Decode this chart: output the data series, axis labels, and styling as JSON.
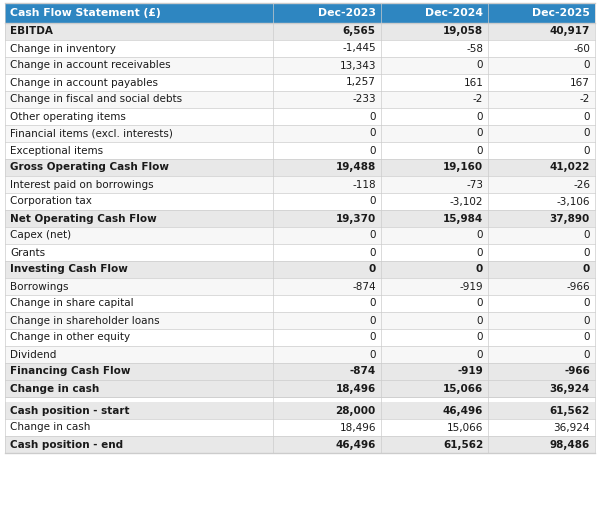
{
  "header_bg": "#2E86C1",
  "header_text_color": "#FFFFFF",
  "bold_row_bg": "#E8E8E8",
  "normal_row_bg": "#FFFFFF",
  "alt_row_bg": "#F7F7F7",
  "border_color": "#CCCCCC",
  "text_color": "#1A1A1A",
  "col_header": "Cash Flow Statement (£)",
  "col1": "Dec-2023",
  "col2": "Dec-2024",
  "col3": "Dec-2025",
  "rows": [
    {
      "label": "EBITDA",
      "v1": "6,565",
      "v2": "19,058",
      "v3": "40,917",
      "bold": true,
      "gap_before": false
    },
    {
      "label": "Change in inventory",
      "v1": "-1,445",
      "v2": "-58",
      "v3": "-60",
      "bold": false,
      "gap_before": false
    },
    {
      "label": "Change in account receivables",
      "v1": "13,343",
      "v2": "0",
      "v3": "0",
      "bold": false,
      "gap_before": false
    },
    {
      "label": "Change in account payables",
      "v1": "1,257",
      "v2": "161",
      "v3": "167",
      "bold": false,
      "gap_before": false
    },
    {
      "label": "Change in fiscal and social debts",
      "v1": "-233",
      "v2": "-2",
      "v3": "-2",
      "bold": false,
      "gap_before": false
    },
    {
      "label": "Other operating items",
      "v1": "0",
      "v2": "0",
      "v3": "0",
      "bold": false,
      "gap_before": false
    },
    {
      "label": "Financial items (excl. interests)",
      "v1": "0",
      "v2": "0",
      "v3": "0",
      "bold": false,
      "gap_before": false
    },
    {
      "label": "Exceptional items",
      "v1": "0",
      "v2": "0",
      "v3": "0",
      "bold": false,
      "gap_before": false
    },
    {
      "label": "Gross Operating Cash Flow",
      "v1": "19,488",
      "v2": "19,160",
      "v3": "41,022",
      "bold": true,
      "gap_before": false
    },
    {
      "label": "Interest paid on borrowings",
      "v1": "-118",
      "v2": "-73",
      "v3": "-26",
      "bold": false,
      "gap_before": false
    },
    {
      "label": "Corporation tax",
      "v1": "0",
      "v2": "-3,102",
      "v3": "-3,106",
      "bold": false,
      "gap_before": false
    },
    {
      "label": "Net Operating Cash Flow",
      "v1": "19,370",
      "v2": "15,984",
      "v3": "37,890",
      "bold": true,
      "gap_before": false
    },
    {
      "label": "Capex (net)",
      "v1": "0",
      "v2": "0",
      "v3": "0",
      "bold": false,
      "gap_before": false
    },
    {
      "label": "Grants",
      "v1": "0",
      "v2": "0",
      "v3": "0",
      "bold": false,
      "gap_before": false
    },
    {
      "label": "Investing Cash Flow",
      "v1": "0",
      "v2": "0",
      "v3": "0",
      "bold": true,
      "gap_before": false
    },
    {
      "label": "Borrowings",
      "v1": "-874",
      "v2": "-919",
      "v3": "-966",
      "bold": false,
      "gap_before": false
    },
    {
      "label": "Change in share capital",
      "v1": "0",
      "v2": "0",
      "v3": "0",
      "bold": false,
      "gap_before": false
    },
    {
      "label": "Change in shareholder loans",
      "v1": "0",
      "v2": "0",
      "v3": "0",
      "bold": false,
      "gap_before": false
    },
    {
      "label": "Change in other equity",
      "v1": "0",
      "v2": "0",
      "v3": "0",
      "bold": false,
      "gap_before": false
    },
    {
      "label": "Dividend",
      "v1": "0",
      "v2": "0",
      "v3": "0",
      "bold": false,
      "gap_before": false
    },
    {
      "label": "Financing Cash Flow",
      "v1": "-874",
      "v2": "-919",
      "v3": "-966",
      "bold": true,
      "gap_before": false
    },
    {
      "label": "Change in cash",
      "v1": "18,496",
      "v2": "15,066",
      "v3": "36,924",
      "bold": true,
      "gap_before": false
    },
    {
      "label": "Cash position - start",
      "v1": "28,000",
      "v2": "46,496",
      "v3": "61,562",
      "bold": true,
      "gap_before": true
    },
    {
      "label": "Change in cash",
      "v1": "18,496",
      "v2": "15,066",
      "v3": "36,924",
      "bold": false,
      "gap_before": false
    },
    {
      "label": "Cash position - end",
      "v1": "46,496",
      "v2": "61,562",
      "v3": "98,486",
      "bold": true,
      "gap_before": false
    }
  ]
}
